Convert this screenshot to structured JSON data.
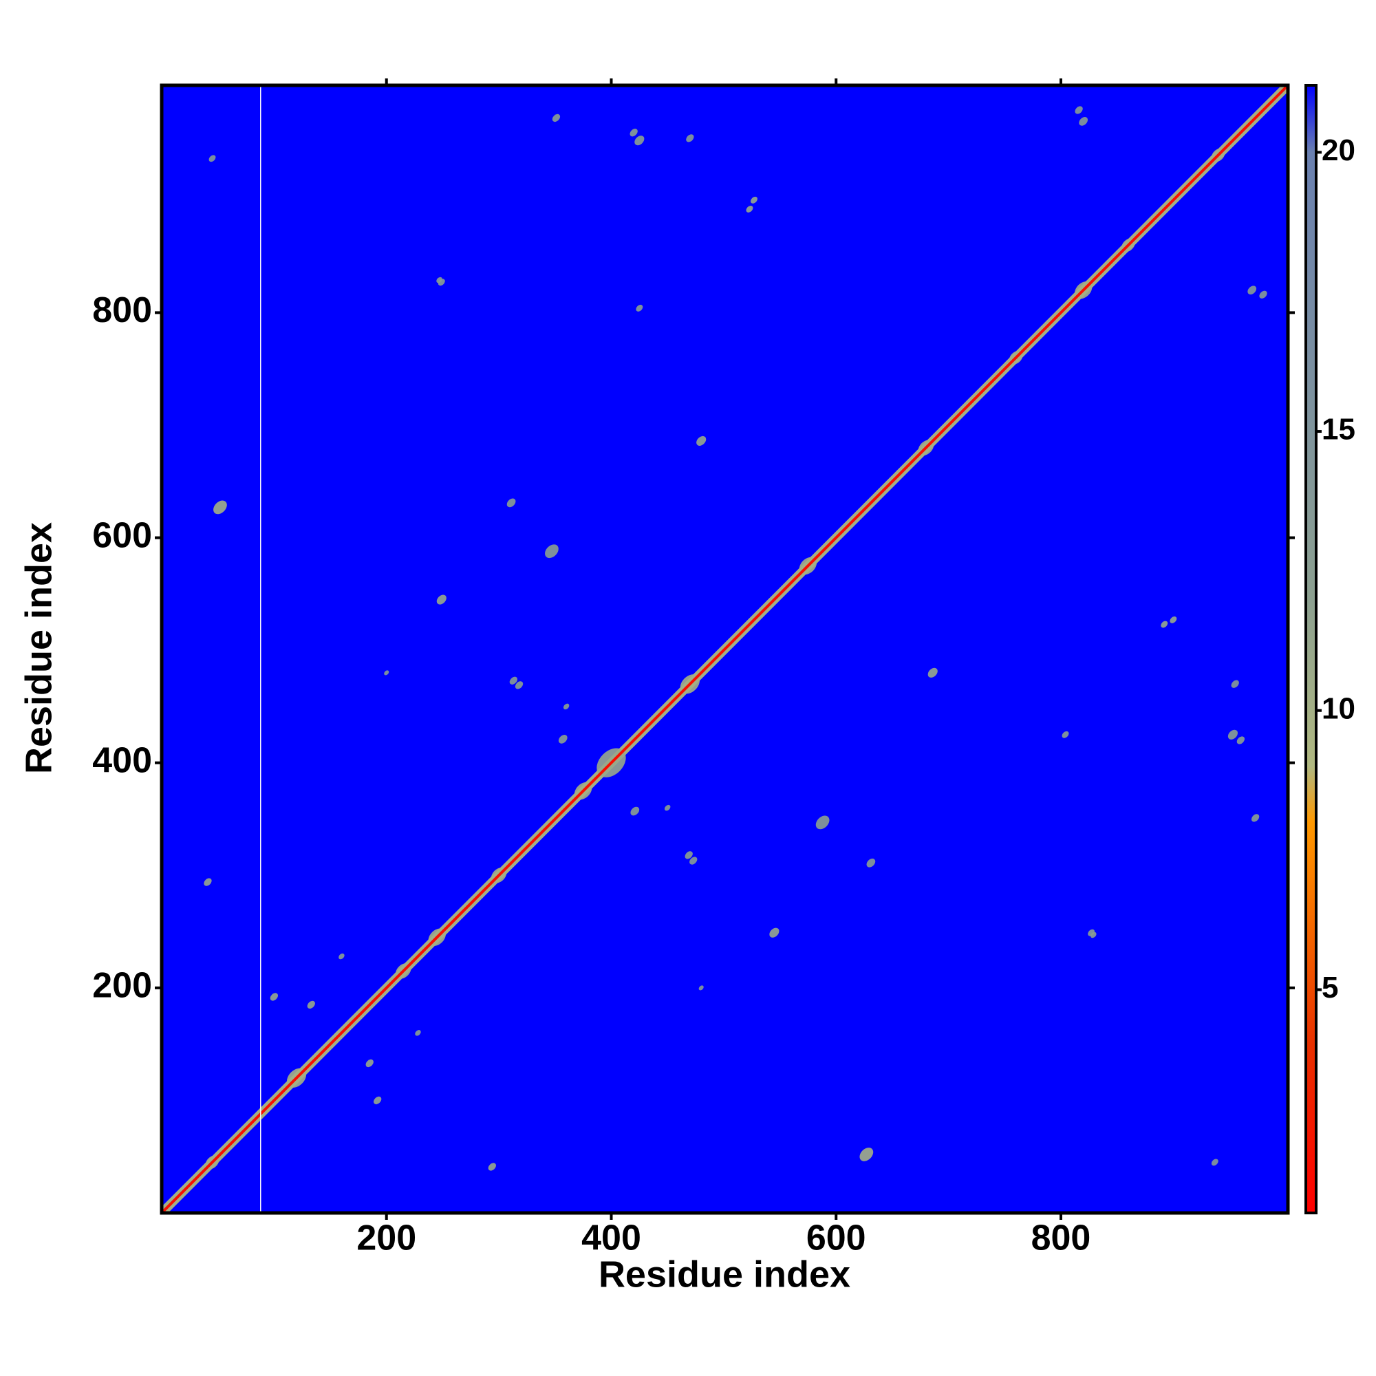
{
  "chart_data": {
    "type": "heatmap",
    "xlabel": "Residue index",
    "ylabel": "Residue index",
    "xlim": [
      0,
      1002
    ],
    "ylim": [
      0,
      1002
    ],
    "xticks": [
      200,
      400,
      600,
      800
    ],
    "yticks": [
      200,
      400,
      600,
      800
    ],
    "symmetric": true,
    "background_value": 21.2,
    "gaps": [
      88
    ],
    "diagonal": {
      "core_value": 2,
      "band_value": 10,
      "band_width": 8
    },
    "colorbar": {
      "lim": [
        1,
        21.2
      ],
      "ticks": [
        5,
        10,
        15,
        20
      ],
      "stops": [
        {
          "value": 1,
          "color": "#ff0000"
        },
        {
          "value": 4,
          "color": "#e83000"
        },
        {
          "value": 8,
          "color": "#ff9900"
        },
        {
          "value": 9,
          "color": "#b0b880"
        },
        {
          "value": 12,
          "color": "#8ca090"
        },
        {
          "value": 20,
          "color": "#6a80b0"
        },
        {
          "value": 21.2,
          "color": "#0000ff"
        }
      ]
    },
    "contacts": [
      {
        "x": 52,
        "y": 627,
        "size": 14,
        "value": 10
      },
      {
        "x": 41,
        "y": 294,
        "size": 8,
        "value": 11
      },
      {
        "x": 100,
        "y": 192,
        "size": 8,
        "value": 11
      },
      {
        "x": 249,
        "y": 545,
        "size": 10,
        "value": 11
      },
      {
        "x": 347,
        "y": 588,
        "size": 14,
        "value": 12
      },
      {
        "x": 480,
        "y": 686,
        "size": 10,
        "value": 11
      },
      {
        "x": 425,
        "y": 953,
        "size": 10,
        "value": 12
      },
      {
        "x": 523,
        "y": 892,
        "size": 7,
        "value": 11
      },
      {
        "x": 425,
        "y": 804,
        "size": 7,
        "value": 12
      },
      {
        "x": 351,
        "y": 973,
        "size": 8,
        "value": 12
      },
      {
        "x": 311,
        "y": 631,
        "size": 9,
        "value": 12
      },
      {
        "x": 816,
        "y": 980,
        "size": 8,
        "value": 13
      },
      {
        "x": 970,
        "y": 820,
        "size": 9,
        "value": 13
      },
      {
        "x": 45,
        "y": 937,
        "size": 7,
        "value": 13
      },
      {
        "x": 249,
        "y": 827,
        "size": 7,
        "value": 12
      },
      {
        "x": 421,
        "y": 357,
        "size": 9,
        "value": 12
      },
      {
        "x": 469,
        "y": 318,
        "size": 8,
        "value": 12
      },
      {
        "x": 829,
        "y": 247,
        "size": 6,
        "value": 12
      },
      {
        "x": 313,
        "y": 473,
        "size": 8,
        "value": 13
      },
      {
        "x": 360,
        "y": 450,
        "size": 6,
        "value": 12
      },
      {
        "x": 900,
        "y": 527,
        "size": 7,
        "value": 11
      },
      {
        "x": 955,
        "y": 470,
        "size": 8,
        "value": 13
      },
      {
        "x": 960,
        "y": 420,
        "size": 8,
        "value": 12
      },
      {
        "x": 185,
        "y": 133,
        "size": 8,
        "value": 11
      },
      {
        "x": 228,
        "y": 160,
        "size": 6,
        "value": 12
      },
      {
        "x": 480,
        "y": 200,
        "size": 5,
        "value": 13
      },
      {
        "x": 45,
        "y": 45,
        "size": 14,
        "value": 10
      },
      {
        "x": 120,
        "y": 120,
        "size": 20,
        "value": 10
      },
      {
        "x": 215,
        "y": 215,
        "size": 16,
        "value": 10
      },
      {
        "x": 245,
        "y": 245,
        "size": 18,
        "value": 10
      },
      {
        "x": 300,
        "y": 300,
        "size": 16,
        "value": 10
      },
      {
        "x": 375,
        "y": 375,
        "size": 18,
        "value": 10
      },
      {
        "x": 400,
        "y": 400,
        "size": 30,
        "value": 11
      },
      {
        "x": 470,
        "y": 470,
        "size": 20,
        "value": 10
      },
      {
        "x": 575,
        "y": 575,
        "size": 18,
        "value": 10
      },
      {
        "x": 680,
        "y": 680,
        "size": 16,
        "value": 10
      },
      {
        "x": 760,
        "y": 760,
        "size": 14,
        "value": 10
      },
      {
        "x": 820,
        "y": 820,
        "size": 18,
        "value": 10
      },
      {
        "x": 860,
        "y": 860,
        "size": 14,
        "value": 10
      },
      {
        "x": 940,
        "y": 940,
        "size": 14,
        "value": 10
      }
    ]
  }
}
